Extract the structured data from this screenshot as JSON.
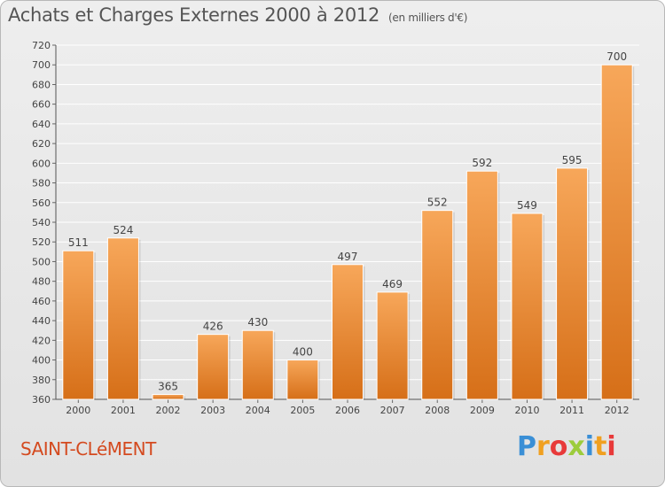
{
  "header": {
    "title": "Achats et Charges Externes 2000 à 2012",
    "unit": "(en milliers d'€)"
  },
  "footer": {
    "commune": "SAINT-CLéMENT",
    "logo_text": "Proxiti",
    "logo_letters": [
      {
        "ch": "P",
        "color": "#3a8fd6"
      },
      {
        "ch": "r",
        "color": "#f0a020"
      },
      {
        "ch": "o",
        "color": "#e83a3a"
      },
      {
        "ch": "x",
        "color": "#9ccc3c"
      },
      {
        "ch": "i",
        "color": "#3a8fd6"
      },
      {
        "ch": "t",
        "color": "#f0a020"
      },
      {
        "ch": "i",
        "color": "#e83a3a"
      }
    ]
  },
  "colors": {
    "bar_top": "#f7a75a",
    "bar_bottom": "#d66f18",
    "grid": "#ffffff",
    "text": "#444444",
    "commune": "#d44a1f"
  },
  "chart_data": {
    "type": "bar",
    "title": "Achats et Charges Externes 2000 à 2012",
    "categories": [
      "2000",
      "2001",
      "2002",
      "2003",
      "2004",
      "2005",
      "2006",
      "2007",
      "2008",
      "2009",
      "2010",
      "2011",
      "2012"
    ],
    "values": [
      511,
      524,
      365,
      426,
      430,
      400,
      497,
      469,
      552,
      592,
      549,
      595,
      700
    ],
    "ylim": [
      360,
      720
    ],
    "yticks": [
      360,
      380,
      400,
      420,
      440,
      460,
      480,
      500,
      520,
      540,
      560,
      580,
      600,
      620,
      640,
      660,
      680,
      700,
      720
    ],
    "grid": true,
    "xlabel": "",
    "ylabel": ""
  }
}
